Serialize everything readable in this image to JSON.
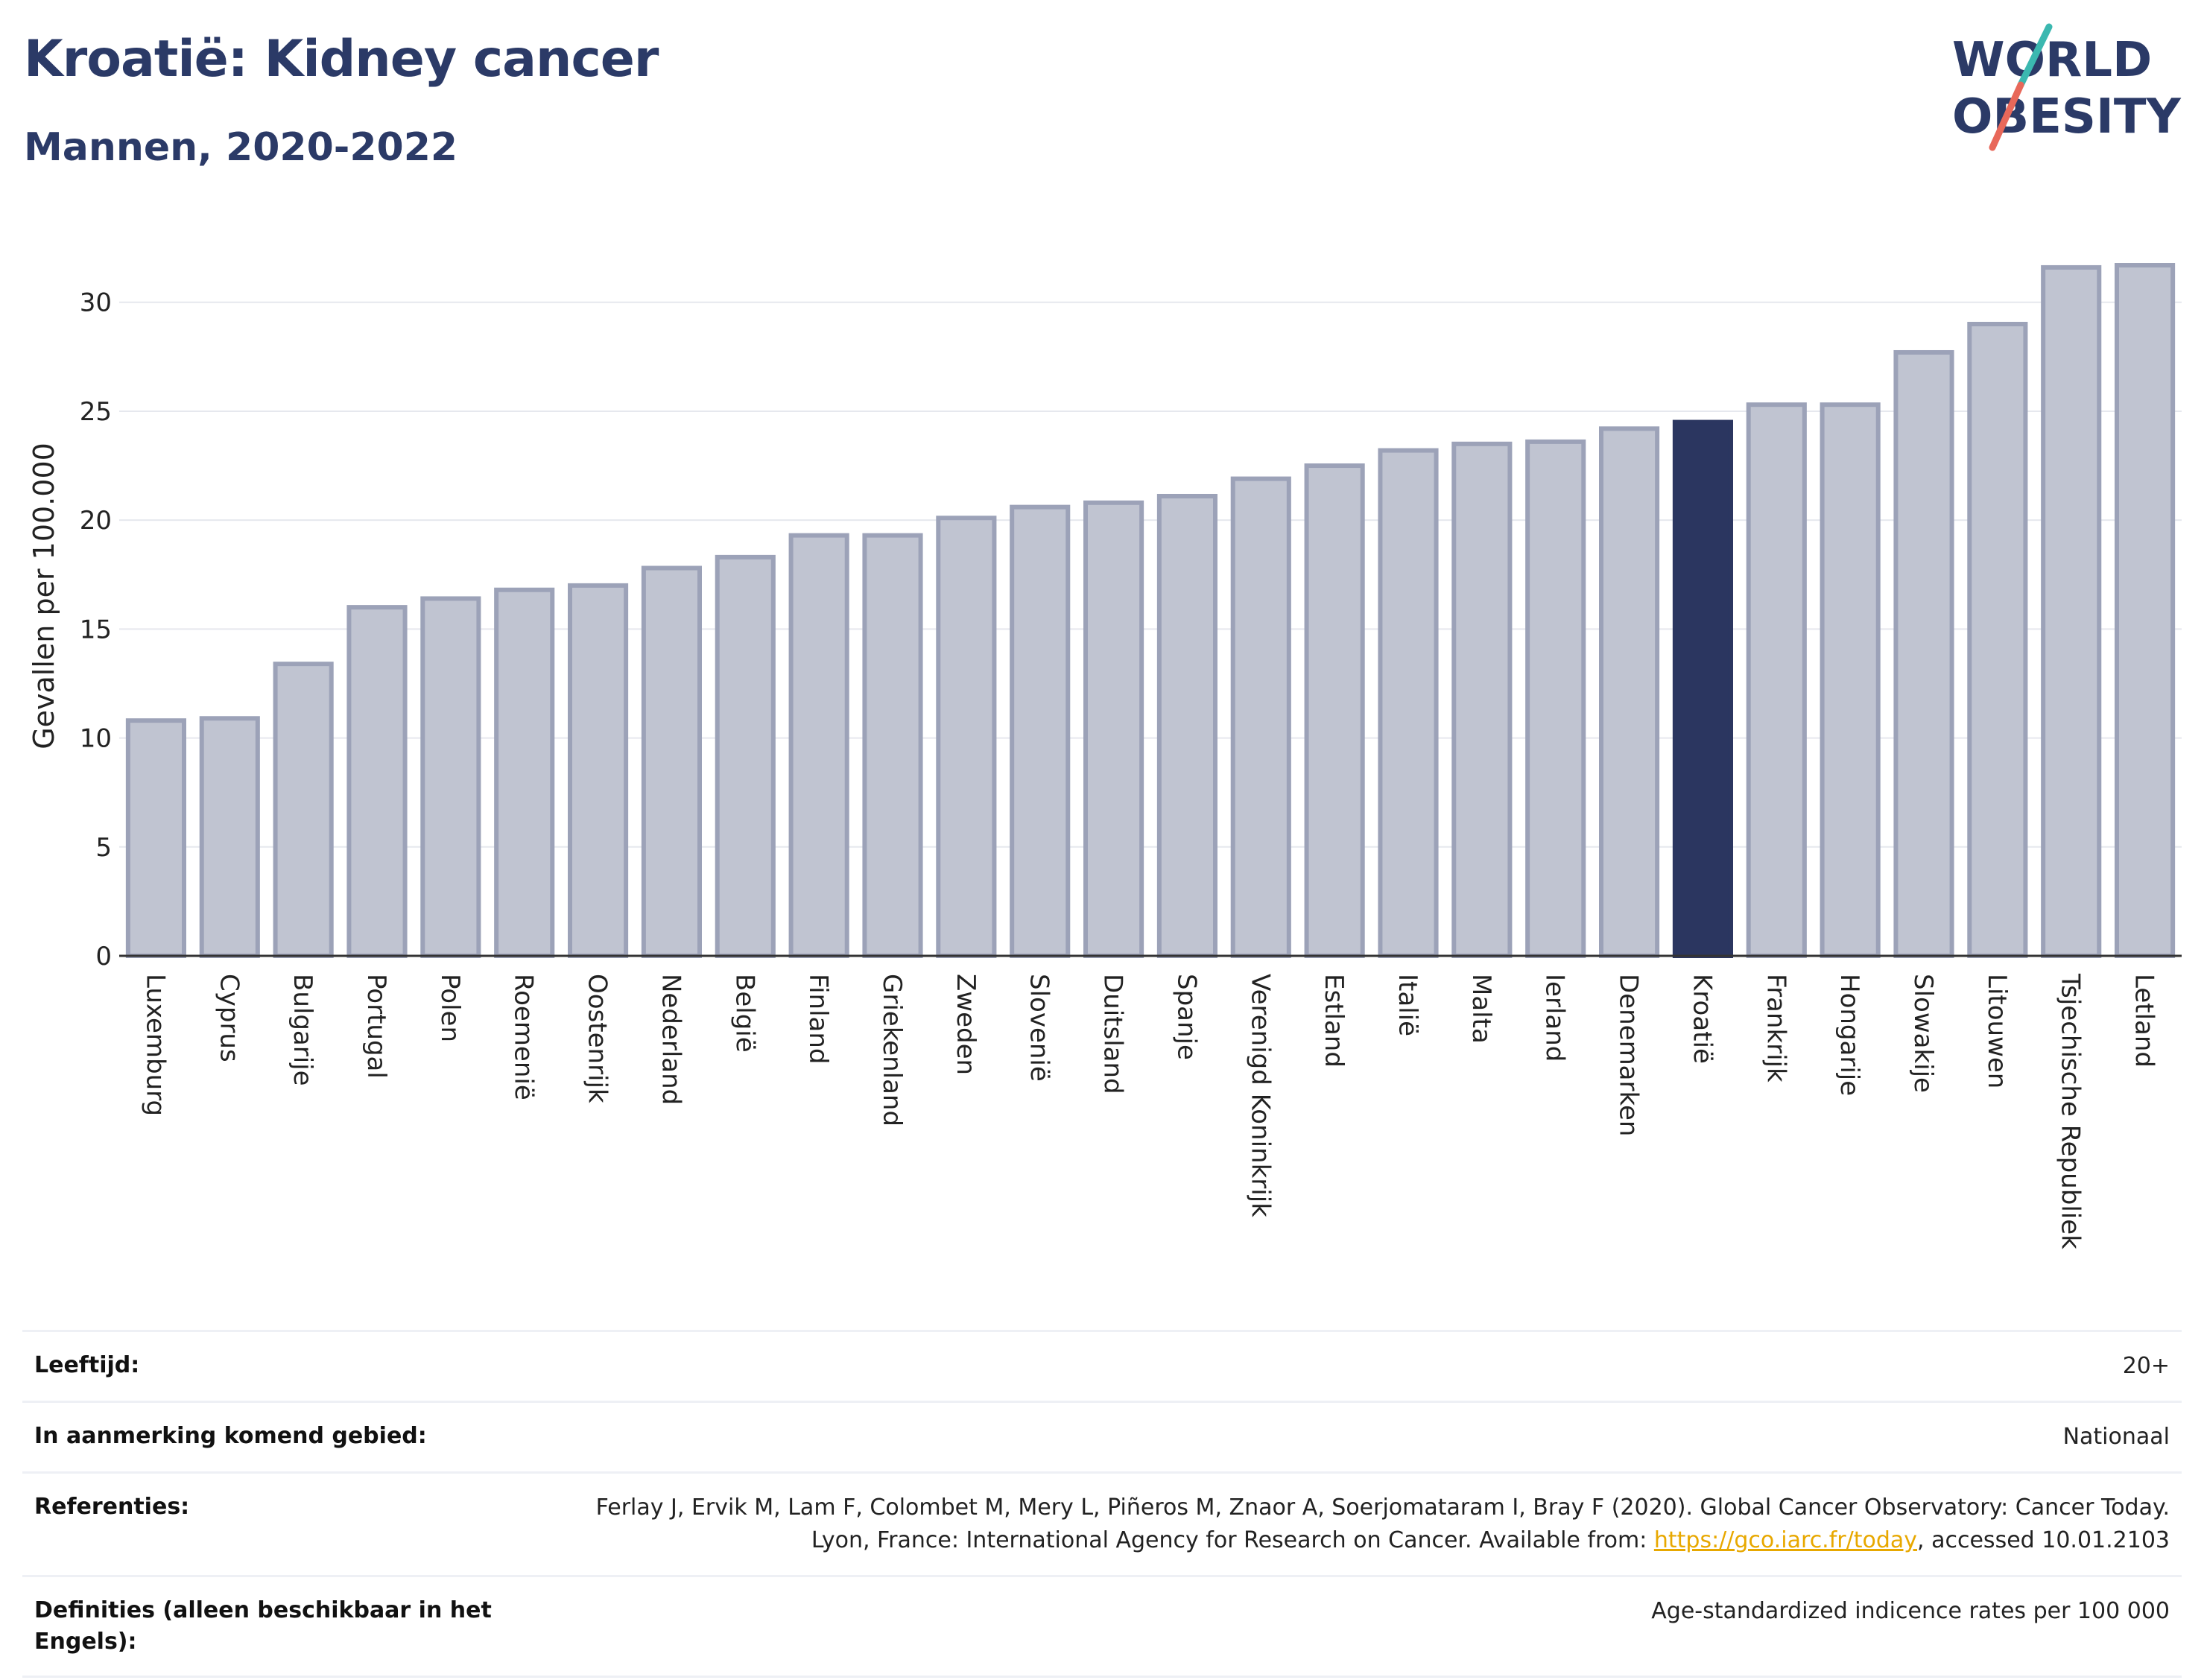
{
  "header": {
    "title": "Kroatië: Kidney cancer",
    "subtitle": "Mannen, 2020-2022"
  },
  "logo": {
    "line1": "WORLD",
    "line2": "OBESITY"
  },
  "colors": {
    "bar": "#c0c4d1",
    "bar_border": "#9ca2b8",
    "highlight": "#2b3660",
    "title": "#2b3a67"
  },
  "chart_data": {
    "type": "bar",
    "title": "Kroatië: Kidney cancer",
    "subtitle": "Mannen, 2020-2022",
    "xlabel": "",
    "ylabel": "Gevallen per 100.000",
    "ylim": [
      0,
      33
    ],
    "yticks": [
      0,
      5,
      10,
      15,
      20,
      25,
      30
    ],
    "grid": true,
    "highlight": "Kroatië",
    "categories": [
      "Luxemburg",
      "Cyprus",
      "Bulgarije",
      "Portugal",
      "Polen",
      "Roemenië",
      "Oostenrijk",
      "Nederland",
      "België",
      "Finland",
      "Griekenland",
      "Zweden",
      "Slovenië",
      "Duitsland",
      "Spanje",
      "Verenigd Koninkrijk",
      "Estland",
      "Italië",
      "Malta",
      "Ierland",
      "Denemarken",
      "Kroatië",
      "Frankrijk",
      "Hongarije",
      "Slowakije",
      "Litouwen",
      "Tsjechische Republiek",
      "Letland"
    ],
    "values": [
      10.8,
      10.9,
      13.4,
      16.0,
      16.4,
      16.8,
      17.0,
      17.8,
      18.3,
      19.3,
      19.3,
      20.1,
      20.6,
      20.8,
      21.1,
      21.9,
      22.5,
      23.2,
      23.5,
      23.6,
      24.2,
      24.5,
      25.3,
      25.3,
      27.7,
      29.0,
      31.6,
      31.7
    ]
  },
  "info": {
    "age_label": "Leeftijd:",
    "age_value": "20+",
    "area_label": "In aanmerking komend gebied:",
    "area_value": "Nationaal",
    "ref_label": "Referenties:",
    "ref_text_1": "Ferlay J, Ervik M, Lam F, Colombet M, Mery L, Piñeros M, Znaor A, Soerjomataram I, Bray F (2020). Global Cancer Observatory: Cancer Today. Lyon, France: International Agency for Research on Cancer. Available from: ",
    "ref_link": "https://gco.iarc.fr/today",
    "ref_text_2": ", accessed 10.01.2103",
    "def_label": "Definities (alleen beschikbaar in het Engels):",
    "def_value": "Age-standardized indicence rates per 100 000"
  }
}
